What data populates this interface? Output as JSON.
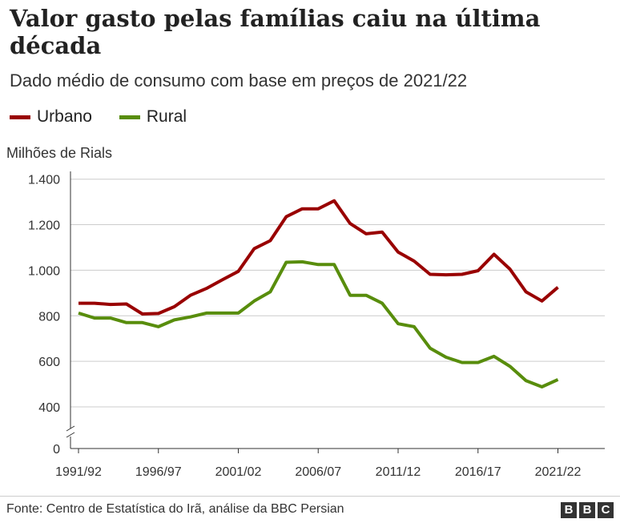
{
  "chart_data": {
    "type": "line",
    "title": "Valor gasto pelas famílias caiu na última década",
    "subtitle": "Dado médio de consumo com base em preços de 2021/22",
    "ylabel": "Milhões de Rials",
    "xlabel": "",
    "x": [
      "1991/92",
      "1992/93",
      "1993/94",
      "1994/95",
      "1995/96",
      "1996/97",
      "1997/98",
      "1998/99",
      "1999/00",
      "2000/01",
      "2001/02",
      "2002/03",
      "2003/04",
      "2004/05",
      "2005/06",
      "2006/07",
      "2007/08",
      "2008/09",
      "2009/10",
      "2010/11",
      "2011/12",
      "2012/13",
      "2013/14",
      "2014/15",
      "2015/16",
      "2016/17",
      "2017/18",
      "2018/19",
      "2019/20",
      "2020/21",
      "2021/22"
    ],
    "xticks": [
      "1991/92",
      "1996/97",
      "2001/02",
      "2006/07",
      "2011/12",
      "2016/17",
      "2021/22"
    ],
    "yticks": [
      {
        "v": 0,
        "label": "0"
      },
      {
        "v": 400,
        "label": "400"
      },
      {
        "v": 600,
        "label": "600"
      },
      {
        "v": 800,
        "label": "800"
      },
      {
        "v": 1000,
        "label": "1.000"
      },
      {
        "v": 1200,
        "label": "1.200"
      },
      {
        "v": 1400,
        "label": "1.400"
      }
    ],
    "ylim": [
      0,
      1400
    ],
    "axis_break": true,
    "grid": true,
    "legend_position": "top-left",
    "series": [
      {
        "name": "Urbano",
        "color": "#990000",
        "values": [
          855,
          855,
          850,
          852,
          808,
          810,
          840,
          890,
          920,
          958,
          995,
          1095,
          1130,
          1235,
          1270,
          1270,
          1305,
          1205,
          1160,
          1168,
          1080,
          1040,
          982,
          980,
          982,
          998,
          1070,
          1005,
          905,
          865,
          925
        ]
      },
      {
        "name": "Rural",
        "color": "#588d0c",
        "values": [
          812,
          790,
          790,
          770,
          770,
          752,
          782,
          795,
          812,
          812,
          812,
          865,
          905,
          1035,
          1037,
          1025,
          1025,
          890,
          890,
          855,
          765,
          752,
          658,
          618,
          595,
          595,
          622,
          578,
          515,
          488,
          520
        ]
      }
    ]
  },
  "footer": {
    "source": "Fonte: Centro de Estatística do Irã, análise da BBC Persian",
    "logo": [
      "B",
      "B",
      "C"
    ]
  }
}
